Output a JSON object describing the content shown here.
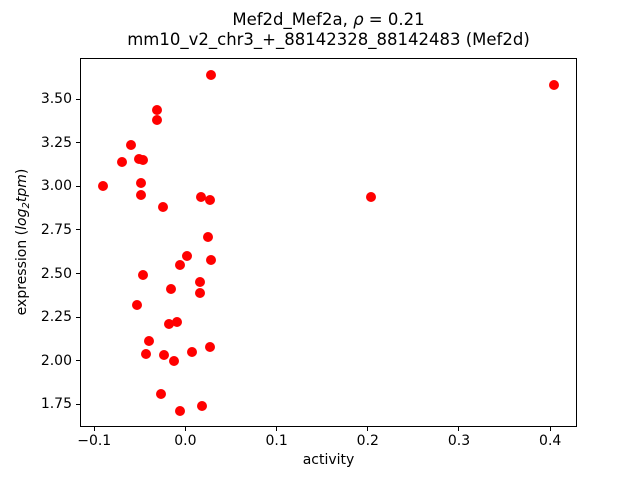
{
  "title": {
    "line1_prefix": "Mef2d_Mef2a, ",
    "line1_rho": "ρ",
    "line1_suffix": " = 0.21",
    "line2": "mm10_v2_chr3_+_88142328_88142483 (Mef2d)"
  },
  "axes": {
    "xlabel": "activity",
    "ylabel_prefix": "expression (",
    "ylabel_log": "log",
    "ylabel_sub": "2",
    "ylabel_tpm": "tpm",
    "ylabel_suffix": ")"
  },
  "chart_data": {
    "type": "scatter",
    "title": "Mef2d_Mef2a, ρ = 0.21",
    "subtitle": "mm10_v2_chr3_+_88142328_88142483 (Mef2d)",
    "xlabel": "activity",
    "ylabel": "expression (log2 tpm)",
    "marker_color": "#ff0000",
    "marker_diameter_px": 10,
    "grid": false,
    "legend": "none",
    "xlim": [
      -0.1156,
      0.4294
    ],
    "ylim": [
      1.619,
      3.737
    ],
    "x_tick_values": [
      -0.1,
      0.0,
      0.1,
      0.2,
      0.3,
      0.4
    ],
    "x_tick_labels": [
      "−0.1",
      "0.0",
      "0.1",
      "0.2",
      "0.3",
      "0.4"
    ],
    "y_tick_values": [
      1.75,
      2.0,
      2.25,
      2.5,
      2.75,
      3.0,
      3.25,
      3.5
    ],
    "y_tick_labels": [
      "1.75",
      "2.00",
      "2.25",
      "2.50",
      "2.75",
      "3.00",
      "3.25",
      "3.50"
    ],
    "points": [
      [
        -0.09,
        3.0
      ],
      [
        -0.07,
        3.14
      ],
      [
        -0.06,
        3.24
      ],
      [
        -0.053,
        2.32
      ],
      [
        -0.051,
        3.16
      ],
      [
        -0.049,
        3.02
      ],
      [
        -0.049,
        2.95
      ],
      [
        -0.047,
        2.49
      ],
      [
        -0.046,
        3.15
      ],
      [
        -0.043,
        2.04
      ],
      [
        -0.04,
        2.11
      ],
      [
        -0.031,
        3.44
      ],
      [
        -0.031,
        3.38
      ],
      [
        -0.027,
        1.81
      ],
      [
        -0.025,
        2.88
      ],
      [
        -0.023,
        2.03
      ],
      [
        -0.018,
        2.21
      ],
      [
        -0.016,
        2.41
      ],
      [
        -0.012,
        2.0
      ],
      [
        -0.009,
        2.22
      ],
      [
        -0.006,
        2.55
      ],
      [
        -0.006,
        1.71
      ],
      [
        0.002,
        2.6
      ],
      [
        0.007,
        2.05
      ],
      [
        0.016,
        2.45
      ],
      [
        0.016,
        2.39
      ],
      [
        0.017,
        2.94
      ],
      [
        0.018,
        1.74
      ],
      [
        0.025,
        2.71
      ],
      [
        0.027,
        2.92
      ],
      [
        0.027,
        2.08
      ],
      [
        0.028,
        2.58
      ],
      [
        0.028,
        3.64
      ],
      [
        0.204,
        2.94
      ],
      [
        0.404,
        3.58
      ]
    ]
  }
}
